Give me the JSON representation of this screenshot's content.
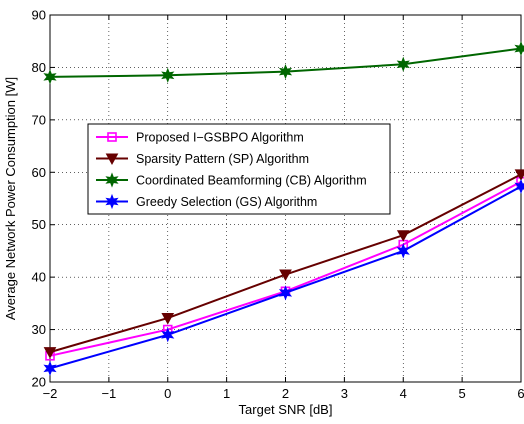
{
  "chart_data": {
    "type": "line",
    "xlabel": "Target SNR [dB]",
    "ylabel": "Average Network Power Consumption [W]",
    "xlim": [
      -2,
      6
    ],
    "ylim": [
      20,
      90
    ],
    "x_ticks": [
      "−2",
      "−1",
      "0",
      "1",
      "2",
      "3",
      "4",
      "5",
      "6"
    ],
    "y_ticks": [
      "20",
      "30",
      "40",
      "50",
      "60",
      "70",
      "80",
      "90"
    ],
    "grid": true,
    "legend_placement": "center-left",
    "x": [
      -2,
      0,
      2,
      4,
      6
    ],
    "series": [
      {
        "name": "Proposed I−GSBPO Algorithm",
        "values": [
          25.0,
          30.0,
          37.3,
          46.2,
          58.2
        ],
        "color": "#ff00ff",
        "marker": "square"
      },
      {
        "name": "Sparsity Pattern (SP) Algorithm",
        "values": [
          25.7,
          32.2,
          40.5,
          48.0,
          59.6
        ],
        "color": "#660000",
        "marker": "triangle-down"
      },
      {
        "name": "Coordinated Beamforming (CB) Algorithm",
        "values": [
          78.2,
          78.5,
          79.2,
          80.6,
          83.6
        ],
        "color": "#006600",
        "marker": "hexagram"
      },
      {
        "name": "Greedy Selection (GS) Algorithm",
        "values": [
          22.6,
          29.0,
          37.0,
          45.0,
          57.3
        ],
        "color": "#0000ff",
        "marker": "hexagram"
      }
    ]
  }
}
